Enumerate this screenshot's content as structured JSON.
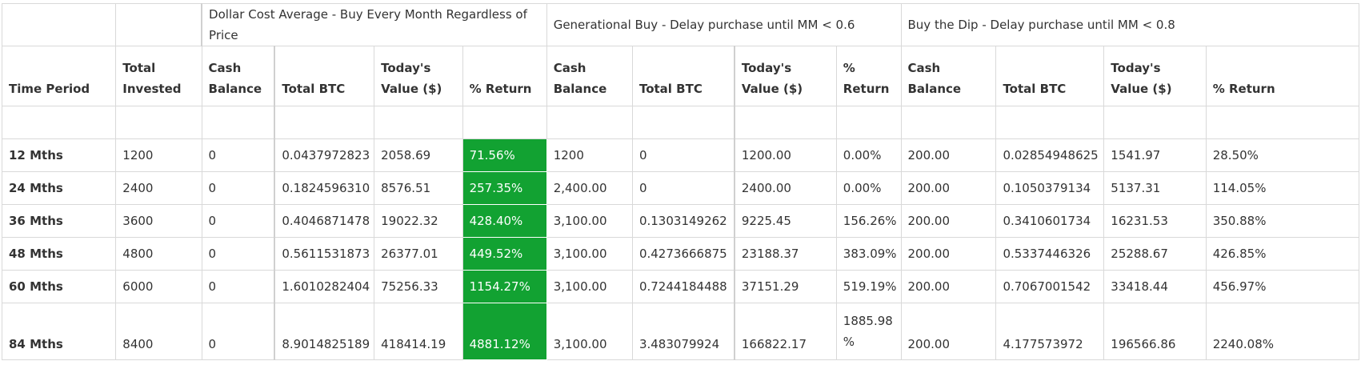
{
  "groups": [
    {
      "label": ""
    },
    {
      "label": ""
    },
    {
      "label": "Dollar Cost Average - Buy Every Month Regardless of Price"
    },
    {
      "label": "Generational Buy - Delay purchase until MM < 0.6"
    },
    {
      "label": "Buy the Dip - Delay purchase until MM < 0.8"
    }
  ],
  "headers": [
    "Time Period",
    "Total Invested",
    "Cash Balance",
    "Total BTC",
    "Today's Value ($)",
    "% Return",
    "Cash Balance",
    "Total BTC",
    "Today's Value ($)",
    "% Return",
    "Cash Balance",
    "Total BTC",
    "Today's Value ($)",
    "% Return"
  ],
  "rows": [
    {
      "period": "12 Mths",
      "cells": [
        "1200",
        "0",
        "0.0437972823",
        "2058.69",
        "71.56%",
        "1200",
        "0",
        "1200.00",
        "0.00%",
        "200.00",
        "0.02854948625",
        "1541.97",
        "28.50%"
      ]
    },
    {
      "period": "24 Mths",
      "cells": [
        "2400",
        "0",
        "0.1824596310",
        "8576.51",
        "257.35%",
        "2,400.00",
        "0",
        "2400.00",
        "0.00%",
        "200.00",
        "0.1050379134",
        "5137.31",
        "114.05%"
      ]
    },
    {
      "period": "36 Mths",
      "cells": [
        "3600",
        "0",
        "0.4046871478",
        "19022.32",
        "428.40%",
        "3,100.00",
        "0.1303149262",
        "9225.45",
        "156.26%",
        "200.00",
        "0.3410601734",
        "16231.53",
        "350.88%"
      ]
    },
    {
      "period": "48 Mths",
      "cells": [
        "4800",
        "0",
        "0.5611531873",
        "26377.01",
        "449.52%",
        "3,100.00",
        "0.4273666875",
        "23188.37",
        "383.09%",
        "200.00",
        "0.5337446326",
        "25288.67",
        "426.85%"
      ]
    },
    {
      "period": "60 Mths",
      "cells": [
        "6000",
        "0",
        "1.6010282404",
        "75256.33",
        "1154.27%",
        "3,100.00",
        "0.7244184488",
        "37151.29",
        "519.19%",
        "200.00",
        "0.7067001542",
        "33418.44",
        "456.97%"
      ]
    },
    {
      "period": "84 Mths",
      "cells": [
        "8400",
        "0",
        "8.9014825189",
        "418414.19",
        "4881.12%",
        "3,100.00",
        "3.483079924",
        "166822.17",
        "1885.98 %",
        "200.00",
        "4.177573972",
        "196566.86",
        "2240.08%"
      ]
    }
  ],
  "colors": {
    "highlight": "#12a232",
    "border": "#d9d9d9",
    "text": "#333333"
  }
}
